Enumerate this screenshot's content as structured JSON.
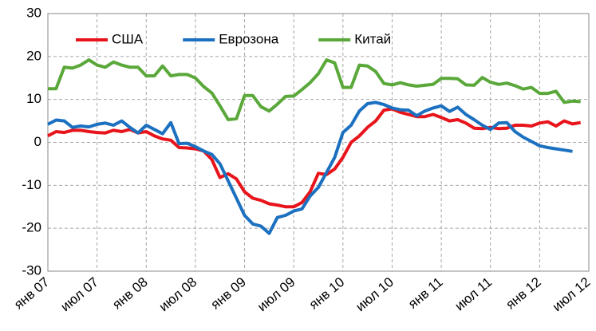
{
  "chart_data": {
    "type": "line",
    "categories": [
      "янв 07",
      null,
      null,
      null,
      null,
      null,
      "июл 07",
      null,
      null,
      null,
      null,
      null,
      "янв 08",
      null,
      null,
      null,
      null,
      null,
      "июл 08",
      null,
      null,
      null,
      null,
      null,
      "янв 09",
      null,
      null,
      null,
      null,
      null,
      "июл 09",
      null,
      null,
      null,
      null,
      null,
      "янв 10",
      null,
      null,
      null,
      null,
      null,
      "июл 10",
      null,
      null,
      null,
      null,
      null,
      "янв 11",
      null,
      null,
      null,
      null,
      null,
      "июл 11",
      null,
      null,
      null,
      null,
      null,
      "янв 12",
      null,
      null,
      null,
      null,
      null,
      "июл 12"
    ],
    "series": [
      {
        "name": "США",
        "color": "#e8141b",
        "values": [
          1.5,
          2.5,
          2.3,
          2.8,
          2.8,
          2.5,
          2.3,
          2.2,
          2.8,
          2.5,
          3,
          2.2,
          2.5,
          1.5,
          0.8,
          0.5,
          -1.2,
          -1.3,
          -1.5,
          -2,
          -4,
          -8.2,
          -7.3,
          -8.5,
          -11.5,
          -13,
          -13.5,
          -14.3,
          -14.6,
          -15,
          -15,
          -14,
          -11.5,
          -7.2,
          -7.5,
          -6.2,
          -3.5,
          0,
          1.5,
          3.5,
          5,
          7.5,
          7.8,
          7,
          6.5,
          6,
          6,
          6.5,
          5.8,
          5,
          5.3,
          4.5,
          3.3,
          3.2,
          3.5,
          3.2,
          3.3,
          4,
          4,
          3.8,
          4.5,
          4.8,
          3.8,
          5,
          4.3,
          4.6,
          null
        ]
      },
      {
        "name": "Еврозона",
        "color": "#1c70c0",
        "values": [
          4.2,
          5.2,
          5,
          3.5,
          3.8,
          3.6,
          4.2,
          4.5,
          4,
          5,
          3.5,
          2.2,
          4,
          3,
          2,
          4.6,
          -0.3,
          -0.2,
          -1,
          -2,
          -2.8,
          -5,
          -9,
          -13,
          -17,
          -19,
          -19.5,
          -21.2,
          -17.5,
          -17,
          -16,
          -15.5,
          -12.5,
          -10.5,
          -7,
          -3.5,
          2.3,
          4,
          7.3,
          9,
          9.3,
          8.8,
          8,
          7.6,
          7.5,
          6.2,
          7.3,
          8,
          8.5,
          7.2,
          8.2,
          6.5,
          5.3,
          4,
          3,
          4.5,
          4.6,
          2.5,
          1.2,
          0.2,
          -0.8,
          -1.2,
          -1.5,
          -1.8,
          -2.1,
          null,
          null
        ]
      },
      {
        "name": "Китай",
        "color": "#5aa83a",
        "values": [
          12.5,
          12.5,
          17.5,
          17.3,
          18,
          19.2,
          18,
          17.5,
          18.7,
          18,
          17.5,
          17.5,
          15.5,
          15.5,
          17.8,
          15.5,
          15.8,
          15.8,
          15,
          13,
          11.5,
          8.5,
          5.3,
          5.5,
          10.9,
          10.9,
          8.3,
          7.3,
          8.9,
          10.7,
          10.8,
          12.3,
          13.9,
          16,
          19.2,
          18.5,
          12.8,
          12.8,
          18,
          17.8,
          16.5,
          13.7,
          13.4,
          13.9,
          13.4,
          13.1,
          13.3,
          13.5,
          14.9,
          14.9,
          14.8,
          13.4,
          13.3,
          15.1,
          14,
          13.5,
          13.8,
          13.2,
          12.4,
          12.8,
          11.4,
          11.4,
          11.9,
          9.3,
          9.6,
          9.5,
          null
        ]
      }
    ],
    "ylim": [
      -30,
      30
    ],
    "yticks": [
      -30,
      -20,
      -10,
      0,
      10,
      20,
      30
    ],
    "grid": true,
    "legend": "upper left"
  }
}
